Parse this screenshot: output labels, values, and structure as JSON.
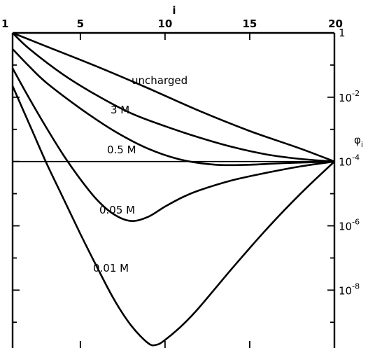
{
  "chart_data": {
    "type": "line",
    "xlabel": "i",
    "ylabel": "φ_i",
    "xlim": [
      1,
      20
    ],
    "ylim_log10": [
      -9.8,
      0
    ],
    "y_scale": "log",
    "grid": false,
    "legend": "none",
    "x_ticks": [
      1,
      5,
      10,
      15,
      20
    ],
    "x_tick_labels": [
      "1",
      "5",
      "10",
      "15",
      "20"
    ],
    "y_ticks": [
      {
        "value": 1,
        "mantissa": "1",
        "exponent": ""
      },
      {
        "value": 0.01,
        "mantissa": "10",
        "exponent": "-2"
      },
      {
        "value": 0.0001,
        "mantissa": "10",
        "exponent": "-4"
      },
      {
        "value": 1e-06,
        "mantissa": "10",
        "exponent": "-6"
      },
      {
        "value": 1e-08,
        "mantissa": "10",
        "exponent": "-8"
      }
    ],
    "reference_line": {
      "y": 0.0001
    },
    "series": [
      {
        "name": "uncharged",
        "label": "uncharged",
        "x": [
          1,
          3,
          6,
          9,
          12,
          15,
          18,
          20
        ],
        "log10_y": [
          0,
          -0.42,
          -1.05,
          -1.72,
          -2.42,
          -3.05,
          -3.6,
          -4
        ]
      },
      {
        "name": "3 M",
        "label": "3 M",
        "x": [
          1,
          2,
          4,
          6,
          8,
          10,
          12,
          14,
          16,
          18,
          20
        ],
        "log10_y": [
          0,
          -0.5,
          -1.3,
          -1.95,
          -2.5,
          -2.9,
          -3.25,
          -3.55,
          -3.78,
          -3.92,
          -4
        ]
      },
      {
        "name": "0.5 M",
        "label": "0.5 M",
        "x": [
          1,
          2,
          3,
          5,
          7,
          9,
          11,
          13,
          15,
          17,
          20
        ],
        "log10_y": [
          -0.5,
          -1.05,
          -1.55,
          -2.35,
          -3.05,
          -3.6,
          -3.95,
          -4.1,
          -4.1,
          -4.05,
          -4
        ]
      },
      {
        "name": "0.05 M",
        "label": "0.05 M",
        "x": [
          1,
          2,
          3,
          4,
          5,
          6,
          7,
          8,
          9,
          10,
          11,
          12,
          14,
          16,
          18,
          20
        ],
        "log10_y": [
          -1.1,
          -2.05,
          -2.95,
          -3.8,
          -4.55,
          -5.2,
          -5.65,
          -5.85,
          -5.72,
          -5.4,
          -5.12,
          -4.9,
          -4.58,
          -4.35,
          -4.15,
          -4
        ]
      },
      {
        "name": "0.01 M",
        "label": "0.01 M",
        "x": [
          1,
          2,
          3,
          4,
          5,
          6,
          7,
          8,
          9,
          9.5,
          10,
          11,
          12,
          14,
          16,
          18,
          20
        ],
        "log10_y": [
          -1.65,
          -2.85,
          -4.05,
          -5.15,
          -6.25,
          -7.3,
          -8.3,
          -9.1,
          -9.65,
          -9.7,
          -9.55,
          -9.1,
          -8.55,
          -7.3,
          -6.1,
          -5,
          -4
        ]
      }
    ]
  }
}
